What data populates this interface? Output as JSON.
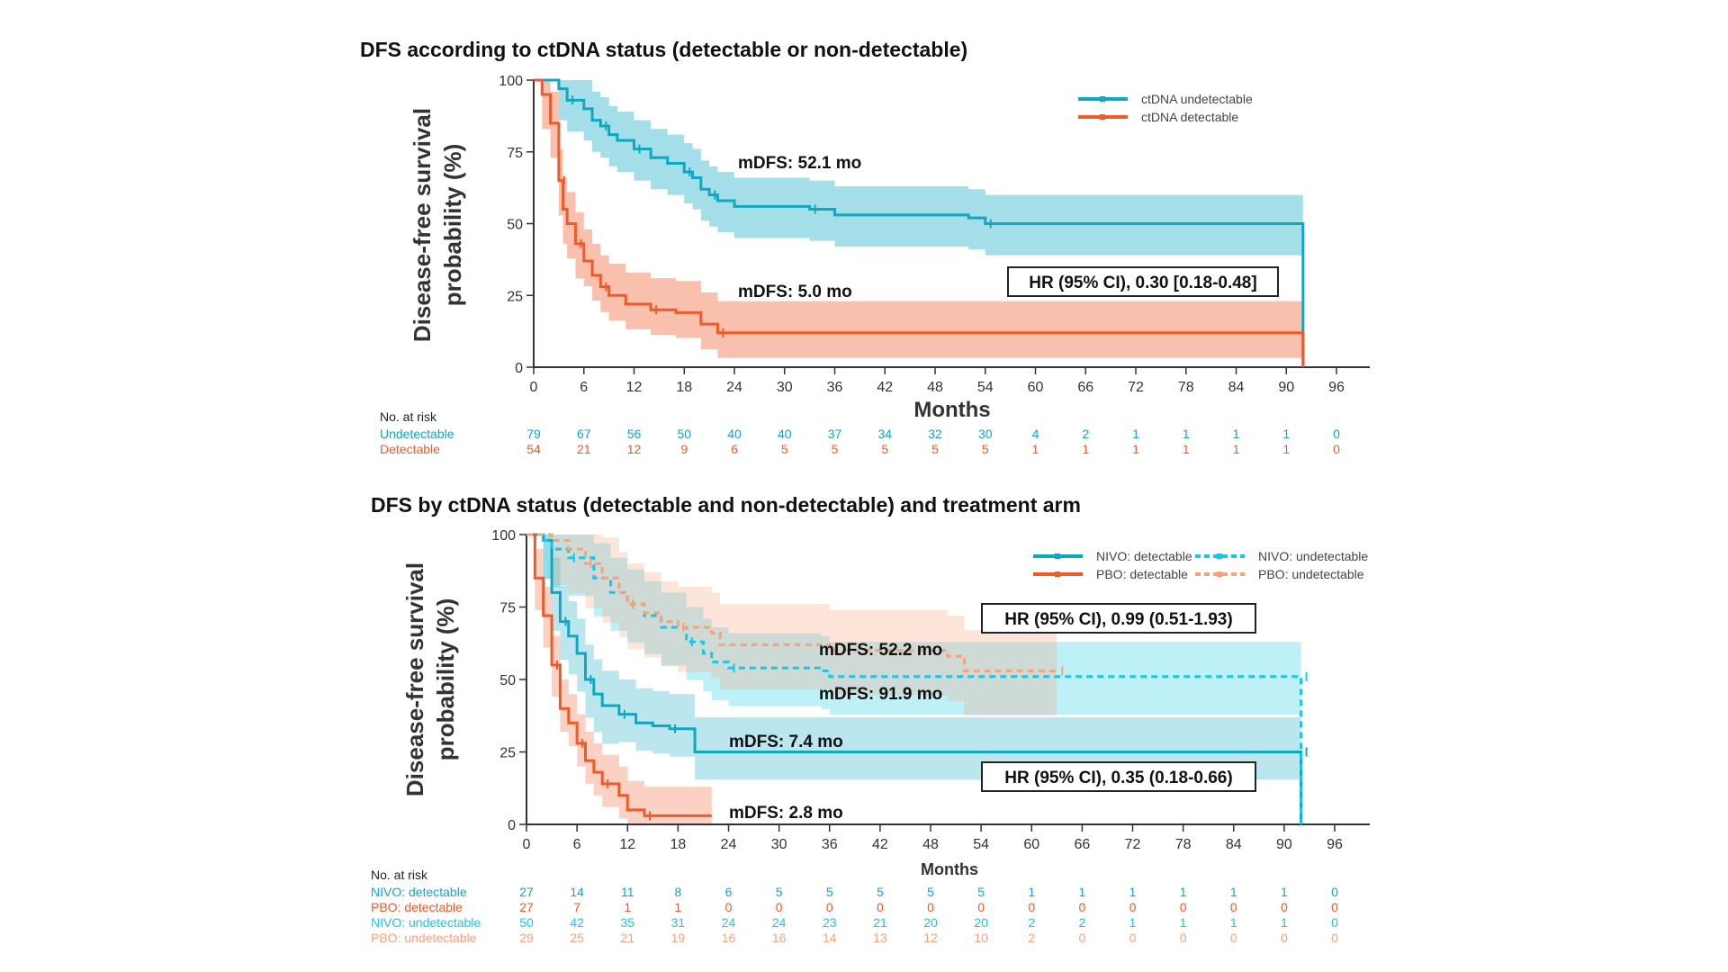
{
  "colors": {
    "teal": "#0fa7c2",
    "orange": "#f05a28",
    "light_teal": "#14c8e6",
    "light_orange": "#f7a27a"
  },
  "chart_data": [
    {
      "type": "line",
      "title": "DFS according to ctDNA status (detectable or non-detectable)",
      "xlabel": "Months",
      "ylabel": "Disease-free survival probability (%)",
      "xlim": [
        0,
        96
      ],
      "ylim": [
        0,
        100
      ],
      "xticks": [
        "0",
        "6",
        "12",
        "18",
        "24",
        "30",
        "36",
        "42",
        "48",
        "54",
        "60",
        "66",
        "72",
        "78",
        "84",
        "90",
        "96"
      ],
      "yticks": [
        "0",
        "25",
        "50",
        "75",
        "100"
      ],
      "legend_position": "top-right",
      "series": [
        {
          "name": "ctDNA undetectable",
          "color": "#0fa7c2",
          "dash": false,
          "ci": 10,
          "points": [
            [
              0,
              100
            ],
            [
              2,
              100
            ],
            [
              3,
              97
            ],
            [
              4,
              93
            ],
            [
              6,
              90
            ],
            [
              7,
              86
            ],
            [
              8,
              84
            ],
            [
              9,
              81
            ],
            [
              10,
              79
            ],
            [
              12,
              76
            ],
            [
              14,
              73
            ],
            [
              16,
              71
            ],
            [
              18,
              68
            ],
            [
              19,
              66
            ],
            [
              20,
              62
            ],
            [
              21,
              60
            ],
            [
              22,
              58
            ],
            [
              24,
              56
            ],
            [
              33,
              55
            ],
            [
              36,
              53
            ],
            [
              52,
              52
            ],
            [
              54,
              50
            ],
            [
              92,
              50
            ]
          ]
        },
        {
          "name": "ctDNA detectable",
          "color": "#f05a28",
          "dash": false,
          "ci": 11,
          "points": [
            [
              0,
              100
            ],
            [
              1,
              95
            ],
            [
              2,
              85
            ],
            [
              3,
              65
            ],
            [
              3.5,
              55
            ],
            [
              4,
              50
            ],
            [
              5,
              43
            ],
            [
              6,
              37
            ],
            [
              7,
              32
            ],
            [
              8,
              28
            ],
            [
              9,
              25
            ],
            [
              11,
              22
            ],
            [
              14,
              20
            ],
            [
              17,
              19
            ],
            [
              20,
              15
            ],
            [
              22,
              12
            ],
            [
              92,
              12
            ]
          ]
        }
      ],
      "annotations": [
        "mDFS: 52.1 mo",
        "mDFS: 5.0 mo",
        "HR (95% CI), 0.30 [0.18-0.48]"
      ],
      "risk_table": {
        "title": "No. at risk",
        "rows": [
          {
            "label": "Undetectable",
            "color": "#0fa7c2",
            "values": [
              "79",
              "67",
              "56",
              "50",
              "40",
              "40",
              "37",
              "34",
              "32",
              "30",
              "4",
              "2",
              "1",
              "1",
              "1",
              "1",
              "0"
            ]
          },
          {
            "label": "Detectable",
            "color": "#f05a28",
            "values": [
              "54",
              "21",
              "12",
              "9",
              "6",
              "5",
              "5",
              "5",
              "5",
              "5",
              "1",
              "1",
              "1",
              "1",
              "1",
              "1",
              "0"
            ]
          }
        ]
      }
    },
    {
      "type": "line",
      "title": "DFS by ctDNA status (detectable and non-detectable) and treatment arm",
      "xlabel": "Months",
      "ylabel": "Disease-free survival probability (%)",
      "xlim": [
        0,
        96
      ],
      "ylim": [
        0,
        100
      ],
      "xticks": [
        "0",
        "6",
        "12",
        "18",
        "24",
        "30",
        "36",
        "42",
        "48",
        "54",
        "60",
        "66",
        "72",
        "78",
        "84",
        "90",
        "96"
      ],
      "yticks": [
        "0",
        "25",
        "50",
        "75",
        "100"
      ],
      "legend_position": "top-right",
      "series": [
        {
          "name": "NIVO: detectable",
          "color": "#0fa7c2",
          "dash": false,
          "ci": 12,
          "points": [
            [
              0,
              100
            ],
            [
              2,
              98
            ],
            [
              3,
              80
            ],
            [
              4,
              70
            ],
            [
              5,
              65
            ],
            [
              6,
              59
            ],
            [
              7,
              50
            ],
            [
              8,
              45
            ],
            [
              9,
              41
            ],
            [
              11,
              38
            ],
            [
              13,
              35
            ],
            [
              15,
              34
            ],
            [
              17,
              33
            ],
            [
              19,
              33
            ],
            [
              20,
              25
            ],
            [
              92,
              25
            ]
          ]
        },
        {
          "name": "PBO: detectable",
          "color": "#f05a28",
          "dash": false,
          "ci": 10,
          "points": [
            [
              0,
              100
            ],
            [
              1,
              85
            ],
            [
              2,
              72
            ],
            [
              3,
              55
            ],
            [
              4,
              40
            ],
            [
              5,
              35
            ],
            [
              6,
              28
            ],
            [
              7,
              22
            ],
            [
              8,
              18
            ],
            [
              9,
              14
            ],
            [
              11,
              10
            ],
            [
              12,
              5
            ],
            [
              14,
              3
            ],
            [
              22,
              3
            ]
          ]
        },
        {
          "name": "NIVO: undetectable",
          "color": "#14c8e6",
          "dash": true,
          "ci": 12,
          "points": [
            [
              0,
              100
            ],
            [
              2,
              98
            ],
            [
              3,
              95
            ],
            [
              5,
              92
            ],
            [
              8,
              85
            ],
            [
              10,
              80
            ],
            [
              12,
              76
            ],
            [
              14,
              72
            ],
            [
              16,
              68
            ],
            [
              19,
              63
            ],
            [
              21,
              59
            ],
            [
              22,
              56
            ],
            [
              24,
              54
            ],
            [
              35,
              53
            ],
            [
              36,
              51
            ],
            [
              92,
              51
            ]
          ]
        },
        {
          "name": "PBO: undetectable",
          "color": "#f7a27a",
          "dash": true,
          "ci": 14,
          "points": [
            [
              0,
              100
            ],
            [
              3,
              98
            ],
            [
              5,
              95
            ],
            [
              7,
              90
            ],
            [
              9,
              85
            ],
            [
              11,
              80
            ],
            [
              12,
              76
            ],
            [
              14,
              73
            ],
            [
              16,
              70
            ],
            [
              18,
              68
            ],
            [
              22,
              66
            ],
            [
              23,
              62
            ],
            [
              36,
              60
            ],
            [
              50,
              58
            ],
            [
              52,
              53
            ],
            [
              63,
              53
            ]
          ]
        }
      ],
      "annotations": [
        "HR (95% CI), 0.99 (0.51-1.93)",
        "mDFS: 52.2 mo",
        "mDFS: 91.9 mo",
        "mDFS: 7.4 mo",
        "HR (95% CI), 0.35 (0.18-0.66)",
        "mDFS: 2.8 mo"
      ],
      "risk_table": {
        "title": "No. at risk",
        "rows": [
          {
            "label": "NIVO: detectable",
            "color": "#0fa7c2",
            "values": [
              "27",
              "14",
              "11",
              "8",
              "6",
              "5",
              "5",
              "5",
              "5",
              "5",
              "1",
              "1",
              "1",
              "1",
              "1",
              "1",
              "0"
            ]
          },
          {
            "label": "PBO: detectable",
            "color": "#f05a28",
            "values": [
              "27",
              "7",
              "1",
              "1",
              "0",
              "0",
              "0",
              "0",
              "0",
              "0",
              "0",
              "0",
              "0",
              "0",
              "0",
              "0",
              "0"
            ]
          },
          {
            "label": "NIVO: undetectable",
            "color": "#14c8e6",
            "values": [
              "50",
              "42",
              "35",
              "31",
              "24",
              "24",
              "23",
              "21",
              "20",
              "20",
              "2",
              "2",
              "1",
              "1",
              "1",
              "1",
              "0"
            ]
          },
          {
            "label": "PBO: undetectable",
            "color": "#f7a27a",
            "values": [
              "29",
              "25",
              "21",
              "19",
              "16",
              "16",
              "14",
              "13",
              "12",
              "10",
              "2",
              "0",
              "0",
              "0",
              "0",
              "0",
              "0"
            ]
          }
        ]
      }
    }
  ]
}
